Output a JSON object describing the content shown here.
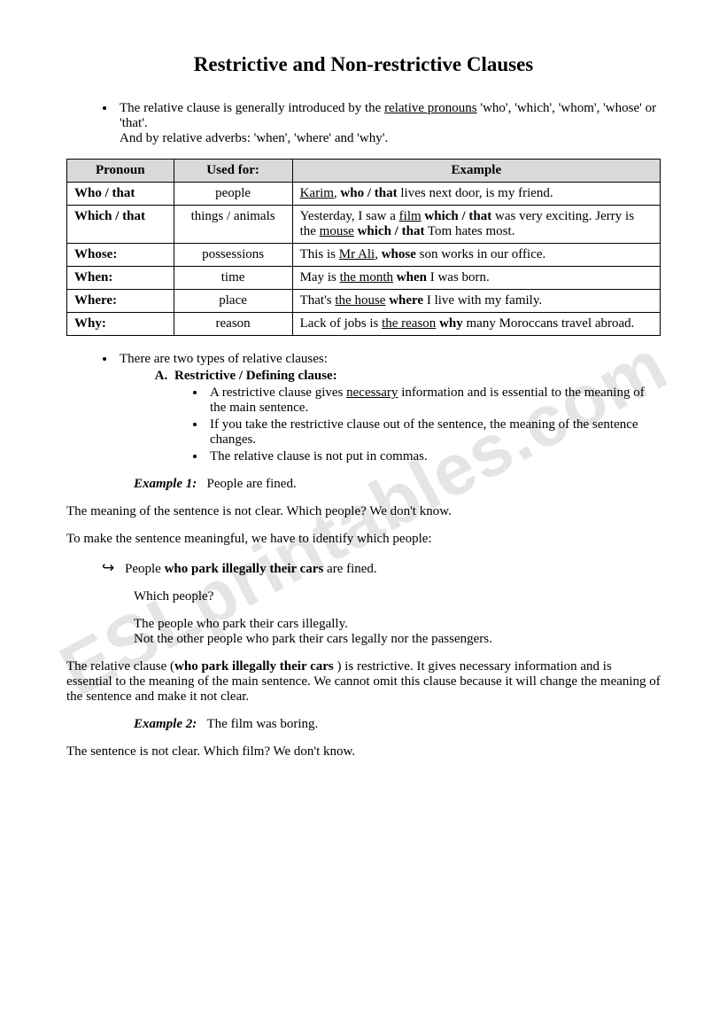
{
  "title": "Restrictive and Non-restrictive Clauses",
  "watermark": "ESLprintables.com",
  "intro": {
    "line1_a": "The relative clause is generally introduced by the ",
    "line1_u": "relative pronouns",
    "line1_b": " 'who', 'which', 'whom', 'whose' or 'that'.",
    "line2": "And by relative adverbs: 'when', 'where' and 'why'."
  },
  "table": {
    "headers": [
      "Pronoun",
      "Used for:",
      "Example"
    ],
    "rows": [
      {
        "pronoun": "Who / that",
        "used": "people",
        "example_parts": [
          {
            "text": "Karim",
            "u": true
          },
          {
            "text": ", "
          },
          {
            "text": "who / that",
            "b": true
          },
          {
            "text": " lives next door, is my friend."
          }
        ]
      },
      {
        "pronoun": "Which / that",
        "used": "things / animals",
        "example_parts": [
          {
            "text": "Yesterday, I saw a "
          },
          {
            "text": "film",
            "u": true
          },
          {
            "text": " "
          },
          {
            "text": "which / that",
            "b": true
          },
          {
            "text": " was very exciting. Jerry is the "
          },
          {
            "text": "mouse",
            "u": true
          },
          {
            "text": " "
          },
          {
            "text": "which / that",
            "b": true
          },
          {
            "text": " Tom hates most."
          }
        ]
      },
      {
        "pronoun": "Whose:",
        "used": "possessions",
        "example_parts": [
          {
            "text": "This is "
          },
          {
            "text": "Mr Ali",
            "u": true
          },
          {
            "text": ", "
          },
          {
            "text": "whose",
            "b": true
          },
          {
            "text": " son works in our office."
          }
        ]
      },
      {
        "pronoun": "When:",
        "used": "time",
        "example_parts": [
          {
            "text": "May is "
          },
          {
            "text": "the month",
            "u": true
          },
          {
            "text": " "
          },
          {
            "text": "when",
            "b": true
          },
          {
            "text": " I was born."
          }
        ]
      },
      {
        "pronoun": "Where:",
        "used": "place",
        "example_parts": [
          {
            "text": "That's "
          },
          {
            "text": "the house",
            "u": true
          },
          {
            "text": " "
          },
          {
            "text": "where",
            "b": true
          },
          {
            "text": " I live with my family."
          }
        ]
      },
      {
        "pronoun": "Why:",
        "used": "reason",
        "example_parts": [
          {
            "text": "Lack of jobs is "
          },
          {
            "text": "the reason",
            "u": true
          },
          {
            "text": " "
          },
          {
            "text": "why",
            "b": true
          },
          {
            "text": " many Moroccans travel abroad."
          }
        ]
      }
    ]
  },
  "types_intro": "There are two types of relative clauses:",
  "type_a_title": "Restrictive / Defining clause:",
  "type_a_points": [
    {
      "pre": "A restrictive clause gives ",
      "u": "necessary",
      "post": " information and is essential to the meaning of the main sentence."
    },
    {
      "pre": "If you take the restrictive clause out of the sentence, the meaning of the sentence changes.",
      "u": "",
      "post": ""
    },
    {
      "pre": "The relative clause is not put in commas.",
      "u": "",
      "post": ""
    }
  ],
  "ex1_label": "Example 1:",
  "ex1_text": "People are fined.",
  "ex1_p1": "The meaning of the sentence is not clear. Which people? We don't know.",
  "ex1_p2": "To make the sentence meaningful, we have to identify which people:",
  "ex1_arrow_pre": "People ",
  "ex1_arrow_bold": "who park illegally their cars",
  "ex1_arrow_post": " are fined.",
  "ex1_q": "Which people?",
  "ex1_a1": "The people who park their cars illegally.",
  "ex1_a2": "Not the other people who park their cars legally nor the passengers.",
  "ex1_concl_a": "The relative clause (",
  "ex1_concl_b": "who park illegally their cars ",
  "ex1_concl_c": ") is restrictive. It gives necessary information and is essential to the meaning of the main sentence. We cannot omit this clause because it will change the meaning of the sentence and make it not clear.",
  "ex2_label": "Example 2:",
  "ex2_text": "The film was boring.",
  "ex2_p1": "The sentence is not clear. Which film? We don't know."
}
